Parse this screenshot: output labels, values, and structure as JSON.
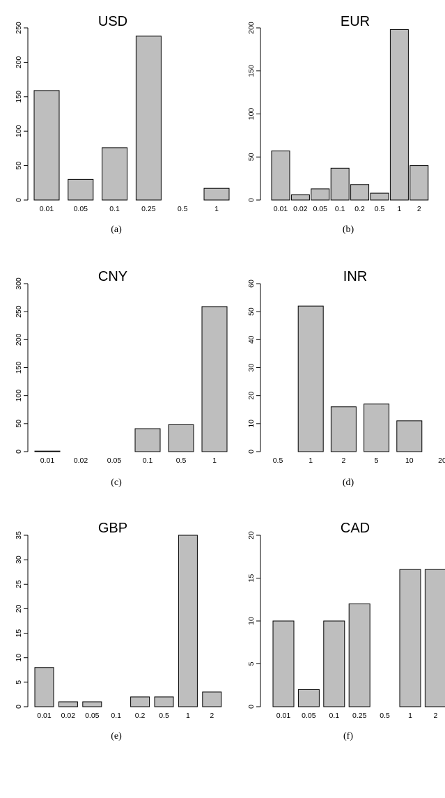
{
  "chart_data": [
    {
      "type": "bar",
      "panel_label": "(a)",
      "title": "USD",
      "categories": [
        "0.01",
        "0.05",
        "0.1",
        "0.25",
        "0.5",
        "1"
      ],
      "values": [
        159,
        30,
        76,
        238,
        0,
        17
      ],
      "yticks": [
        "0",
        "50",
        "100",
        "150",
        "200",
        "250"
      ],
      "ylim": [
        0,
        250
      ],
      "bar_color": "#bebebe"
    },
    {
      "type": "bar",
      "panel_label": "(b)",
      "title": "EUR",
      "categories": [
        "0.01",
        "0.02",
        "0.05",
        "0.1",
        "0.2",
        "0.5",
        "1",
        "2"
      ],
      "values": [
        57,
        6,
        13,
        37,
        18,
        8,
        198,
        40
      ],
      "yticks": [
        "0",
        "50",
        "100",
        "150",
        "200"
      ],
      "ylim": [
        0,
        200
      ],
      "bar_color": "#bebebe"
    },
    {
      "type": "bar",
      "panel_label": "(c)",
      "title": "CNY",
      "categories": [
        "0.01",
        "0.02",
        "0.05",
        "0.1",
        "0.5",
        "1"
      ],
      "values": [
        1,
        0,
        0,
        41,
        48,
        259
      ],
      "yticks": [
        "0",
        "50",
        "100",
        "150",
        "200",
        "250",
        "300"
      ],
      "ylim": [
        0,
        300
      ],
      "bar_color": "#bebebe"
    },
    {
      "type": "bar",
      "panel_label": "(d)",
      "title": "INR",
      "categories": [
        "0.5",
        "1",
        "2",
        "5",
        "10",
        "20"
      ],
      "values": [
        0,
        52,
        16,
        17,
        11,
        0
      ],
      "yticks": [
        "0",
        "10",
        "20",
        "30",
        "40",
        "50",
        "60"
      ],
      "ylim": [
        0,
        60
      ],
      "bar_color": "#bebebe"
    },
    {
      "type": "bar",
      "panel_label": "(e)",
      "title": "GBP",
      "categories": [
        "0.01",
        "0.02",
        "0.05",
        "0.1",
        "0.2",
        "0.5",
        "1",
        "2"
      ],
      "values": [
        8,
        1,
        1,
        0,
        2,
        2,
        35,
        3
      ],
      "yticks": [
        "0",
        "5",
        "10",
        "15",
        "20",
        "25",
        "30",
        "35"
      ],
      "ylim": [
        0,
        35
      ],
      "bar_color": "#bebebe"
    },
    {
      "type": "bar",
      "panel_label": "(f)",
      "title": "CAD",
      "categories": [
        "0.01",
        "0.05",
        "0.1",
        "0.25",
        "0.5",
        "1",
        "2"
      ],
      "values": [
        10,
        2,
        10,
        12,
        0,
        16,
        16
      ],
      "yticks": [
        "0",
        "5",
        "10",
        "15",
        "20"
      ],
      "ylim": [
        0,
        20
      ],
      "bar_color": "#bebebe"
    }
  ]
}
